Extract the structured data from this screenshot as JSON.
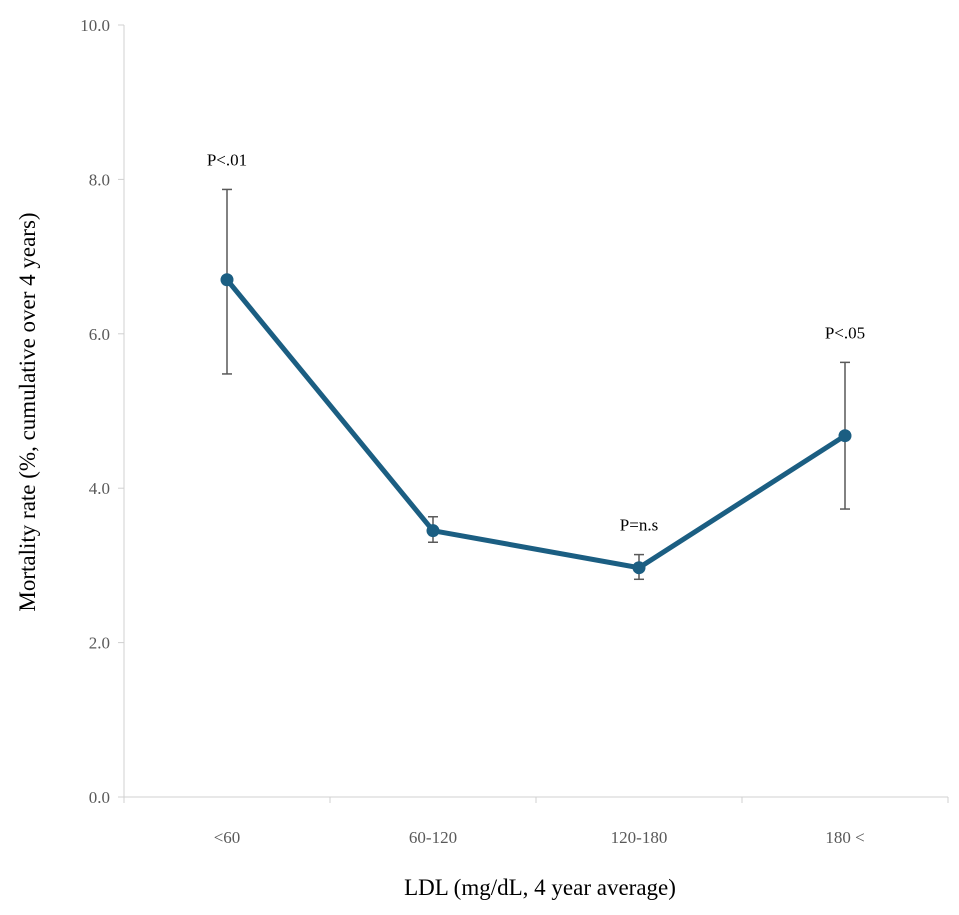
{
  "chart_data": {
    "type": "line",
    "categories": [
      "<60",
      "60-120",
      "120-180",
      "180 <"
    ],
    "series": [
      {
        "values": [
          6.7,
          3.45,
          2.97,
          4.68
        ],
        "error_low": [
          5.48,
          3.3,
          2.82,
          3.73
        ],
        "error_high": [
          7.87,
          3.63,
          3.14,
          5.63
        ]
      }
    ],
    "annotations": [
      {
        "category": "<60",
        "text": "P<.01"
      },
      {
        "category": "120-180",
        "text": "P=n.s"
      },
      {
        "category": "180 <",
        "text": "P<.05"
      }
    ],
    "xlabel": "LDL (mg/dL, 4 year average)",
    "ylabel": "Mortality rate (%, cumulative over 4 years)",
    "ylim": [
      0,
      10
    ],
    "yticks": [
      "0.0",
      "2.0",
      "4.0",
      "6.0",
      "8.0",
      "10.0"
    ],
    "grid": false,
    "legend": "none"
  },
  "colors": {
    "series": "#1b5e82",
    "error_bar": "#595959",
    "axis": "#d0d0d0"
  }
}
